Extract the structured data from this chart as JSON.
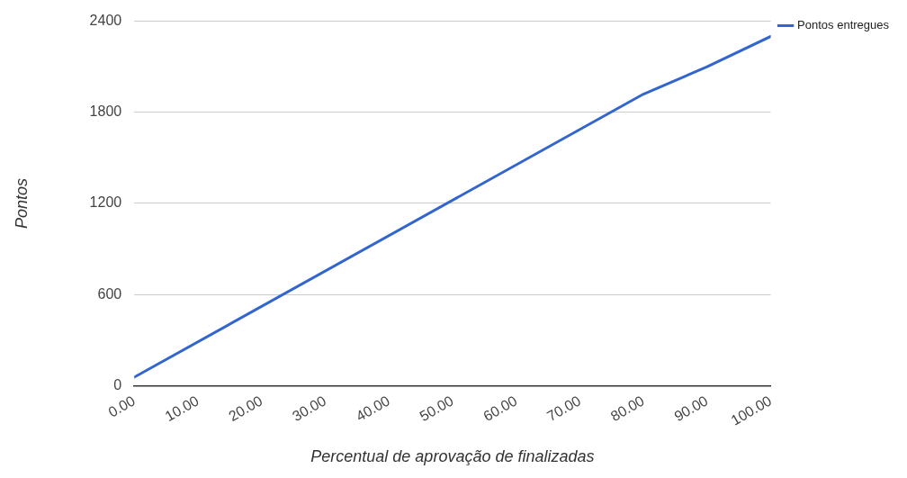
{
  "chart_data": {
    "type": "line",
    "xlabel": "Percentual de aprovação de finalizadas",
    "ylabel": "Pontos",
    "x": [
      0,
      80,
      90,
      100
    ],
    "series": [
      {
        "name": "Pontos entregues",
        "color": "#3366cc",
        "values": [
          55,
          1920,
          2100,
          2300
        ]
      }
    ],
    "xlim": [
      0,
      100
    ],
    "xticks": [
      {
        "value": 0,
        "label": "0.00"
      },
      {
        "value": 10,
        "label": "10.00"
      },
      {
        "value": 20,
        "label": "20.00"
      },
      {
        "value": 30,
        "label": "30.00"
      },
      {
        "value": 40,
        "label": "40.00"
      },
      {
        "value": 50,
        "label": "50.00"
      },
      {
        "value": 60,
        "label": "60.00"
      },
      {
        "value": 70,
        "label": "70.00"
      },
      {
        "value": 80,
        "label": "80.00"
      },
      {
        "value": 90,
        "label": "90.00"
      },
      {
        "value": 100,
        "label": "100.00"
      }
    ],
    "ylim": [
      0,
      2400
    ],
    "yticks": [
      0,
      600,
      1200,
      1800,
      2400
    ],
    "grid": "y",
    "legend": "top right",
    "marker": "none",
    "line_style": "solid"
  }
}
